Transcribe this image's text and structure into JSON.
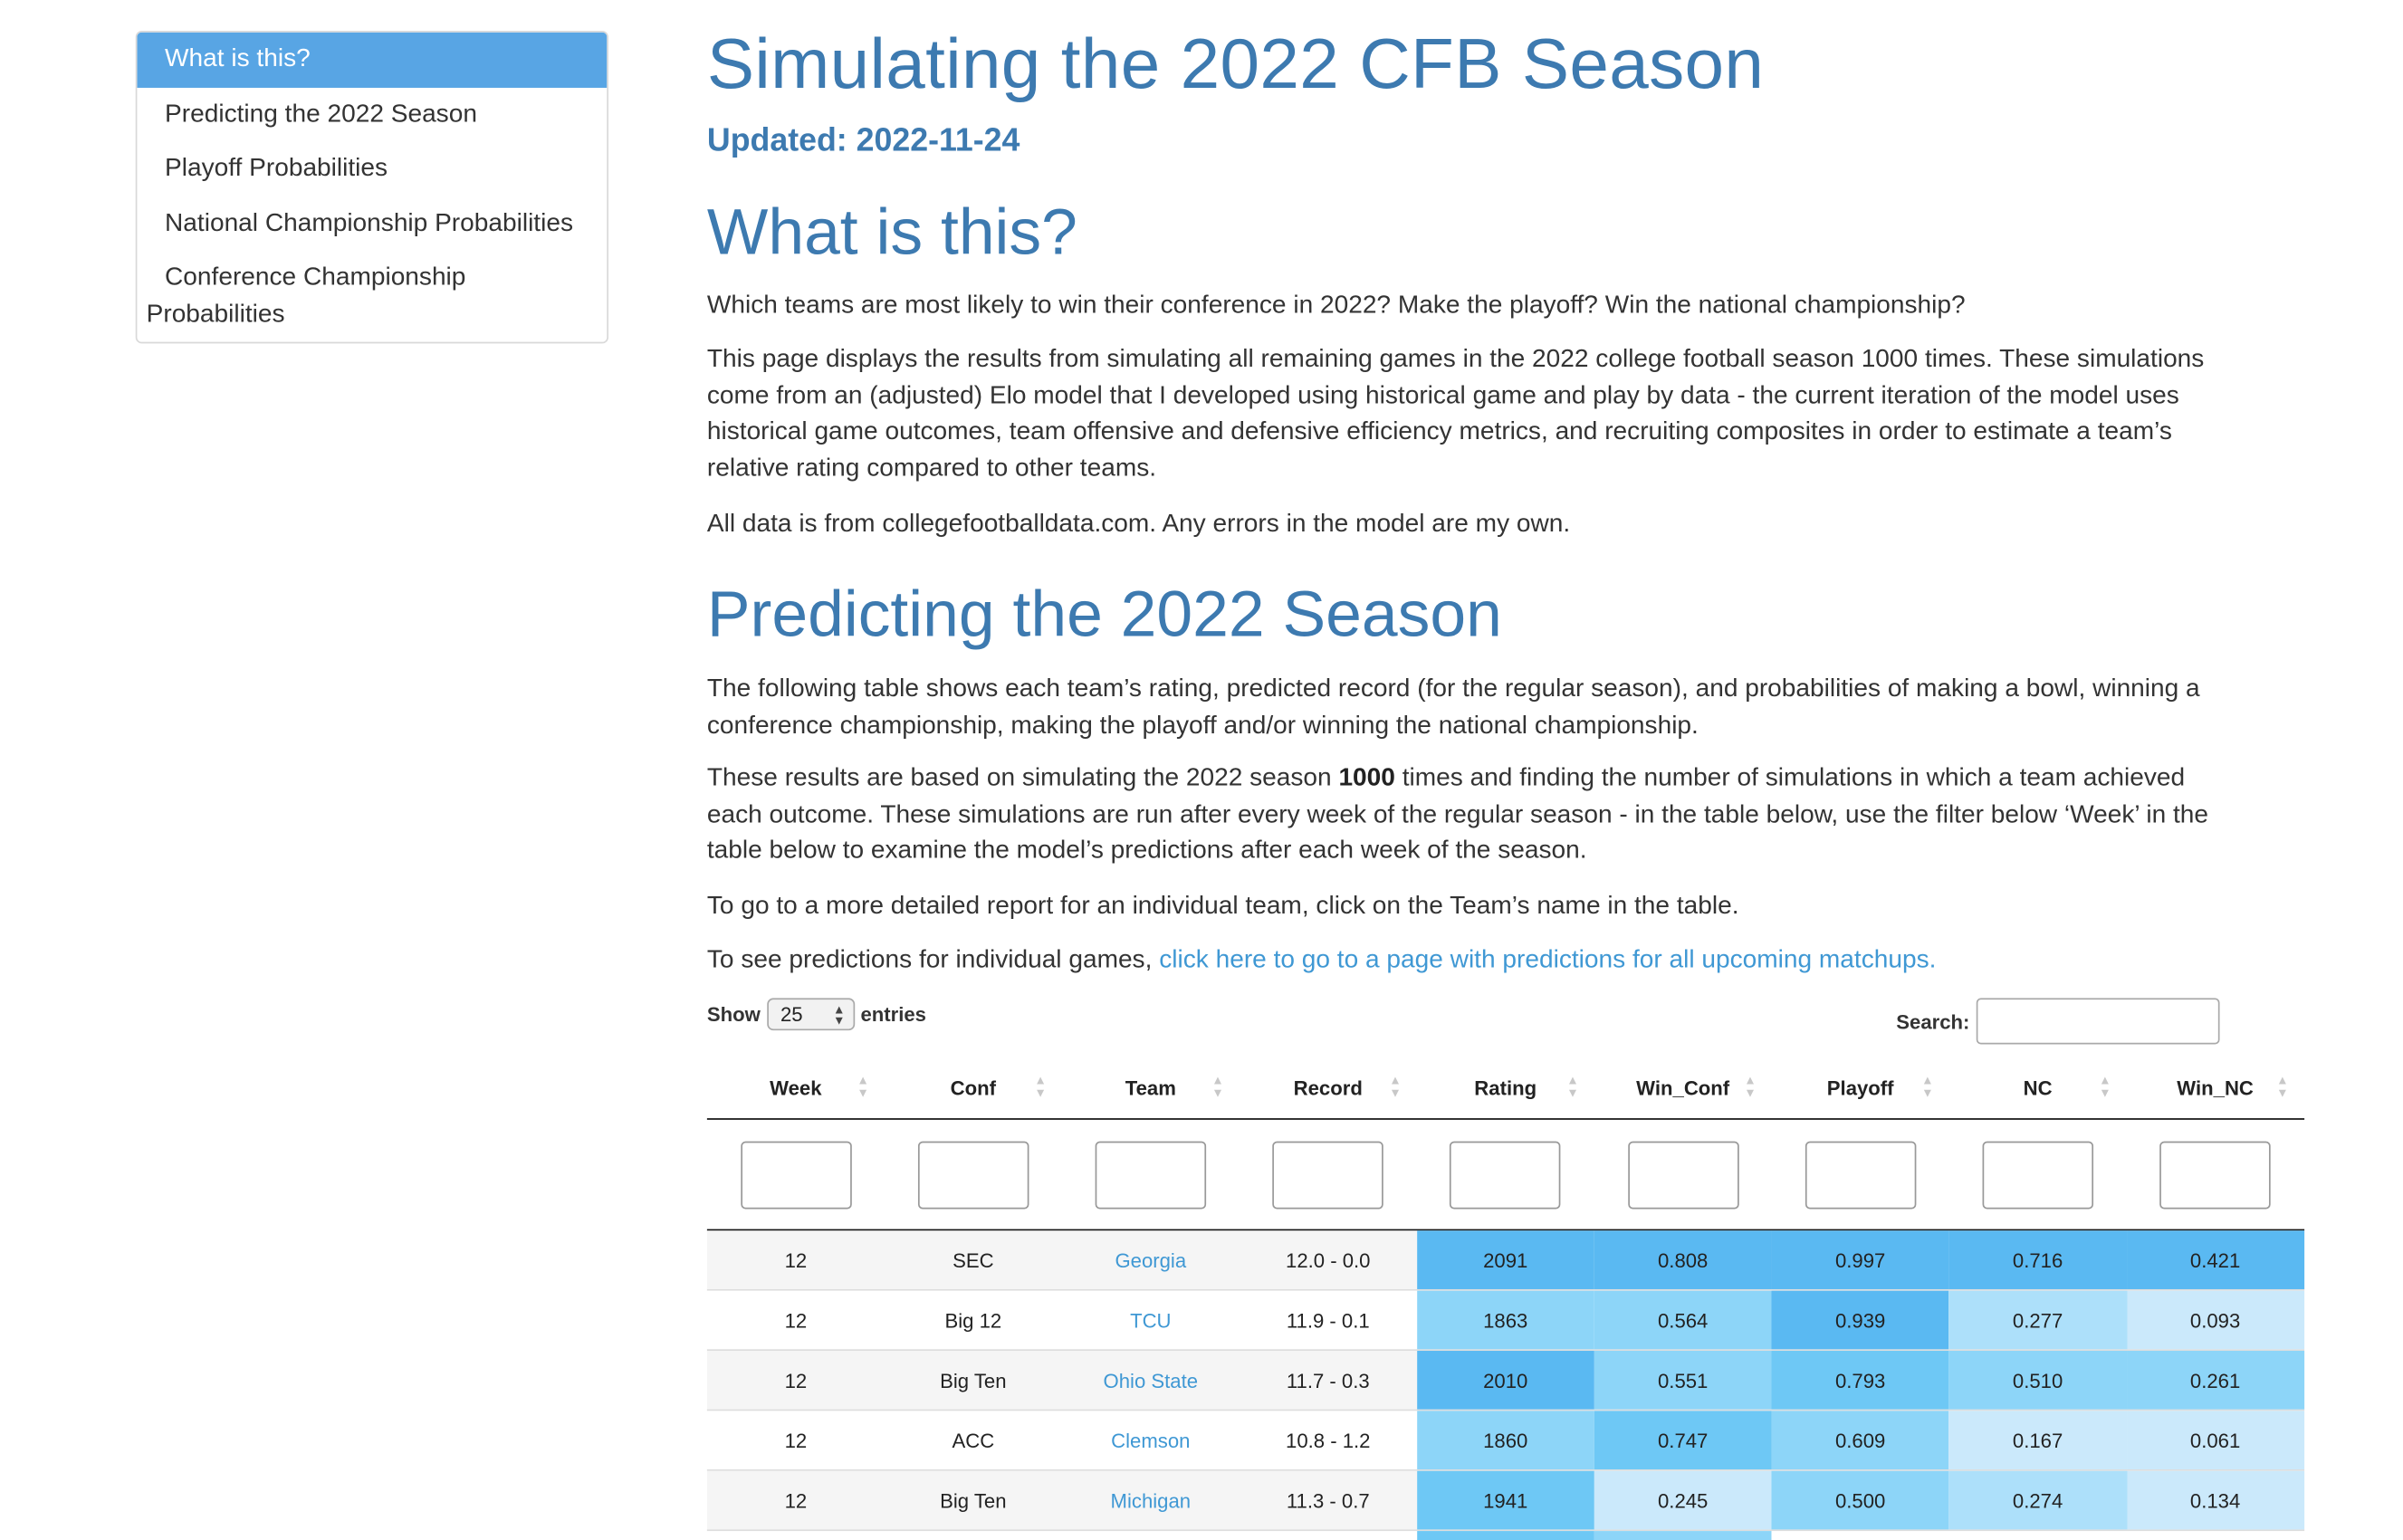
{
  "toc": {
    "items": [
      {
        "label": "What is this?",
        "active": true
      },
      {
        "label": "Predicting the 2022 Season",
        "active": false
      },
      {
        "label": "Playoff Probabilities",
        "active": false
      },
      {
        "label": "National Championship Probabilities",
        "active": false
      },
      {
        "label": "Conference Championship Probabilities",
        "active": false
      }
    ]
  },
  "header": {
    "title": "Simulating the 2022 CFB Season",
    "updated": "Updated: 2022-11-24"
  },
  "section_what": {
    "heading": "What is this?",
    "p1": "Which teams are most likely to win their conference in 2022? Make the playoff? Win the national championship?",
    "p2": "This page displays the results from simulating all remaining games in the 2022 college football season 1000 times. These simulations come from an (adjusted) Elo model that I developed using historical game and play by data - the current iteration of the model uses historical game outcomes, team offensive and defensive efficiency metrics, and recruiting composites in order to estimate a team’s relative rating compared to other teams.",
    "p3": "All data is from collegefootballdata.com. Any errors in the model are my own."
  },
  "section_predict": {
    "heading": "Predicting the 2022 Season",
    "p1": "The following table shows each team’s rating, predicted record (for the regular season), and probabilities of making a bowl, winning a conference championship, making the playoff and/or winning the national championship.",
    "p2_pre": "These results are based on simulating the 2022 season ",
    "p2_bold": "1000",
    "p2_post": " times and finding the number of simulations in which a team achieved each outcome. These simulations are run after every week of the regular season - in the table below, use the filter below ‘Week’ in the table below to examine the model’s predictions after each week of the season.",
    "p3": "To go to a more detailed report for an individual team, click on the Team’s name in the table.",
    "p4_pre": "To see predictions for individual games, ",
    "p4_link": "click here to go to a page with predictions for all upcoming matchups."
  },
  "table_controls": {
    "show_label": "Show",
    "page_size": "25",
    "entries_label": "entries",
    "search_label": "Search:"
  },
  "table": {
    "columns": [
      "Week",
      "Conf",
      "Team",
      "Record",
      "Rating",
      "Win_Conf",
      "Playoff",
      "NC",
      "Win_NC"
    ],
    "rows": [
      {
        "week": "12",
        "conf": "SEC",
        "team": "Georgia",
        "record": "12.0 - 0.0",
        "rating": "2091",
        "win_conf": "0.808",
        "playoff": "0.997",
        "nc": "0.716",
        "win_nc": "0.421"
      },
      {
        "week": "12",
        "conf": "Big 12",
        "team": "TCU",
        "record": "11.9 - 0.1",
        "rating": "1863",
        "win_conf": "0.564",
        "playoff": "0.939",
        "nc": "0.277",
        "win_nc": "0.093"
      },
      {
        "week": "12",
        "conf": "Big Ten",
        "team": "Ohio State",
        "record": "11.7 - 0.3",
        "rating": "2010",
        "win_conf": "0.551",
        "playoff": "0.793",
        "nc": "0.510",
        "win_nc": "0.261"
      },
      {
        "week": "12",
        "conf": "ACC",
        "team": "Clemson",
        "record": "10.8 - 1.2",
        "rating": "1860",
        "win_conf": "0.747",
        "playoff": "0.609",
        "nc": "0.167",
        "win_nc": "0.061"
      },
      {
        "week": "12",
        "conf": "Big Ten",
        "team": "Michigan",
        "record": "11.3 - 0.7",
        "rating": "1941",
        "win_conf": "0.245",
        "playoff": "0.500",
        "nc": "0.274",
        "win_nc": "0.134"
      }
    ]
  },
  "colors": {
    "accent": "#3d7ab0",
    "link": "#3f98d4",
    "toc_active": "#58a5e4",
    "heat": [
      "#e6f4fd",
      "#cbe9fb",
      "#ade0fa",
      "#8dd5f8",
      "#6ec8f5",
      "#5ab9f2"
    ]
  }
}
